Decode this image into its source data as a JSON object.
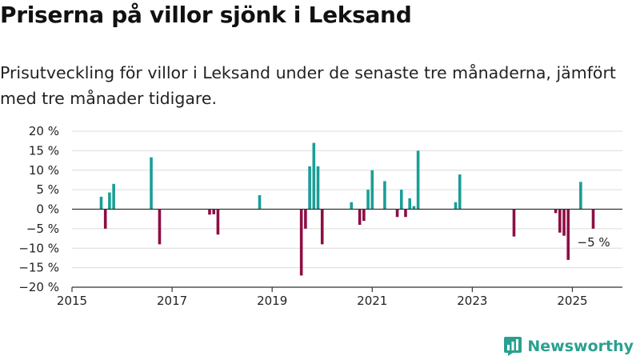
{
  "title": "Priserna på villor sjönk i Leksand",
  "subtitle": "Prisutveckling för villor i Leksand under de senaste tre månaderna, jämfört med tre månader tidigare.",
  "brand": {
    "name": "Newsworthy",
    "icon": "newsworthy-logo-icon"
  },
  "colors": {
    "positive": "#1a9e96",
    "negative": "#8d0e44",
    "brand": "#2aa090"
  },
  "chart_data": {
    "type": "bar",
    "title": "Priserna på villor sjönk i Leksand",
    "subtitle": "Prisutveckling för villor i Leksand under de senaste tre månaderna, jämfört med tre månader tidigare.",
    "xlabel": "",
    "ylabel": "",
    "xlim": [
      "2015-01",
      "2026-01"
    ],
    "ylim": [
      -20,
      20
    ],
    "unit": "%",
    "grid": true,
    "x_ticks": [
      "2015",
      "2017",
      "2019",
      "2021",
      "2023",
      "2025"
    ],
    "y_ticks": [
      "20 %",
      "15 %",
      "10 %",
      "5 %",
      "0 %",
      "−5 %",
      "−10 %",
      "−15 %",
      "−20 %"
    ],
    "annotation": {
      "x": "2025-06",
      "y": -5,
      "text": "−5 %"
    },
    "series": [
      {
        "points": [
          {
            "x": "2015-08",
            "y": 3.2
          },
          {
            "x": "2015-09",
            "y": -5.0
          },
          {
            "x": "2015-10",
            "y": 4.3
          },
          {
            "x": "2015-11",
            "y": 6.5
          },
          {
            "x": "2016-08",
            "y": 13.3
          },
          {
            "x": "2016-10",
            "y": -9.0
          },
          {
            "x": "2017-10",
            "y": -1.4
          },
          {
            "x": "2017-11",
            "y": -1.3
          },
          {
            "x": "2017-12",
            "y": -6.5
          },
          {
            "x": "2018-10",
            "y": 3.6
          },
          {
            "x": "2019-08",
            "y": -17.0
          },
          {
            "x": "2019-09",
            "y": -5.0
          },
          {
            "x": "2019-10",
            "y": 11.0
          },
          {
            "x": "2019-11",
            "y": 17.0
          },
          {
            "x": "2019-12",
            "y": 11.0
          },
          {
            "x": "2020-01",
            "y": -9.0
          },
          {
            "x": "2020-08",
            "y": 1.8
          },
          {
            "x": "2020-10",
            "y": -4.0
          },
          {
            "x": "2020-11",
            "y": -3.0
          },
          {
            "x": "2020-12",
            "y": 5.0
          },
          {
            "x": "2021-01",
            "y": 10.0
          },
          {
            "x": "2021-04",
            "y": 7.2
          },
          {
            "x": "2021-07",
            "y": -2.0
          },
          {
            "x": "2021-08",
            "y": 5.0
          },
          {
            "x": "2021-09",
            "y": -2.0
          },
          {
            "x": "2021-10",
            "y": 2.8
          },
          {
            "x": "2021-11",
            "y": 0.8
          },
          {
            "x": "2021-12",
            "y": 15.0
          },
          {
            "x": "2022-09",
            "y": 1.8
          },
          {
            "x": "2022-10",
            "y": 8.9
          },
          {
            "x": "2023-11",
            "y": -7.0
          },
          {
            "x": "2024-09",
            "y": -1.0
          },
          {
            "x": "2024-10",
            "y": -6.0
          },
          {
            "x": "2024-11",
            "y": -6.8
          },
          {
            "x": "2024-12",
            "y": -13.0
          },
          {
            "x": "2025-03",
            "y": 7.0
          },
          {
            "x": "2025-06",
            "y": -5.0
          }
        ]
      }
    ]
  }
}
